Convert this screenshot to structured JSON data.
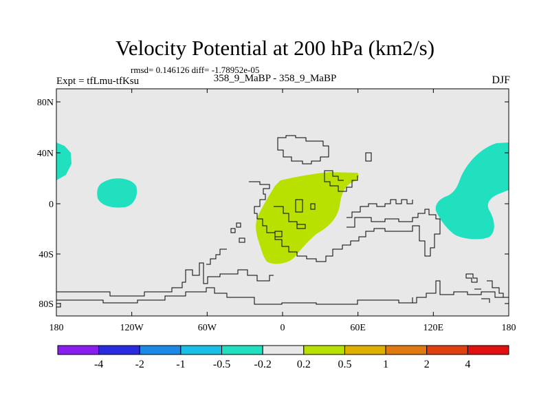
{
  "header": {
    "title": "Velocity Potential at 200 hPa (km2/s)",
    "stats": "rmsd= 0.146126  diff= -1.78952e-05",
    "experiment": "Expt = tfLmu-tfKsu",
    "comparison": "358_9_MaBP - 358_9_MaBP",
    "season": "DJF"
  },
  "axes": {
    "lat_labels": [
      "80N",
      "40N",
      "0",
      "40S",
      "80S"
    ],
    "lon_labels": [
      "180",
      "120W",
      "60W",
      "0",
      "60E",
      "120E",
      "180"
    ]
  },
  "colorbar": {
    "colors": [
      "#8a1ef0",
      "#2a2ae0",
      "#1a8ae6",
      "#18c0e8",
      "#20e0c0",
      "#e8e8e8",
      "#b8e000",
      "#e0b000",
      "#e07a10",
      "#e04010",
      "#e01010"
    ],
    "labels": [
      "-4",
      "-2",
      "-1",
      "-0.5",
      "-0.2",
      "0.2",
      "0.5",
      "1",
      "2",
      "4"
    ]
  },
  "colors": {
    "background": "#e8e8e8",
    "negative_fill": "#20e0c0",
    "positive_fill": "#b8e000"
  }
}
